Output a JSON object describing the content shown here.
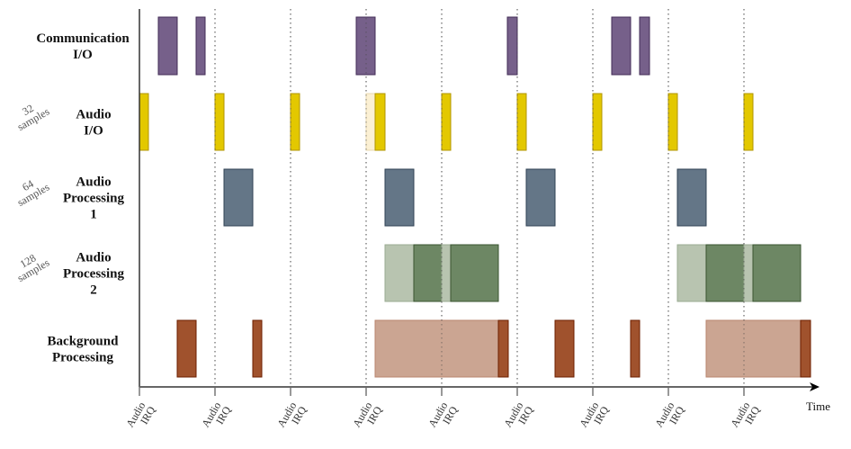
{
  "rows": [
    {
      "label_lines": [
        "Communication",
        "I/O"
      ],
      "note_lines": []
    },
    {
      "label_lines": [
        "Audio",
        "I/O"
      ],
      "note_lines": [
        "32",
        "samples"
      ]
    },
    {
      "label_lines": [
        "Audio",
        "Processing",
        "1"
      ],
      "note_lines": [
        "64",
        "samples"
      ]
    },
    {
      "label_lines": [
        "Audio",
        "Processing",
        "2"
      ],
      "note_lines": [
        "128",
        "samples"
      ]
    },
    {
      "label_lines": [
        "Background",
        "Processing"
      ],
      "note_lines": []
    }
  ],
  "irq_label_lines": [
    "Audio",
    "IRQ"
  ],
  "time_label": "Time",
  "colors": {
    "communication": "#76608a",
    "audio_io": "#e3c800",
    "audio_io_faded": "#fbf0d4",
    "processing1": "#647687",
    "processing2": "#6d8764",
    "processing2_faded": "#b8c4b0",
    "background": "#a0522d",
    "background_faded": "#cba592"
  }
}
